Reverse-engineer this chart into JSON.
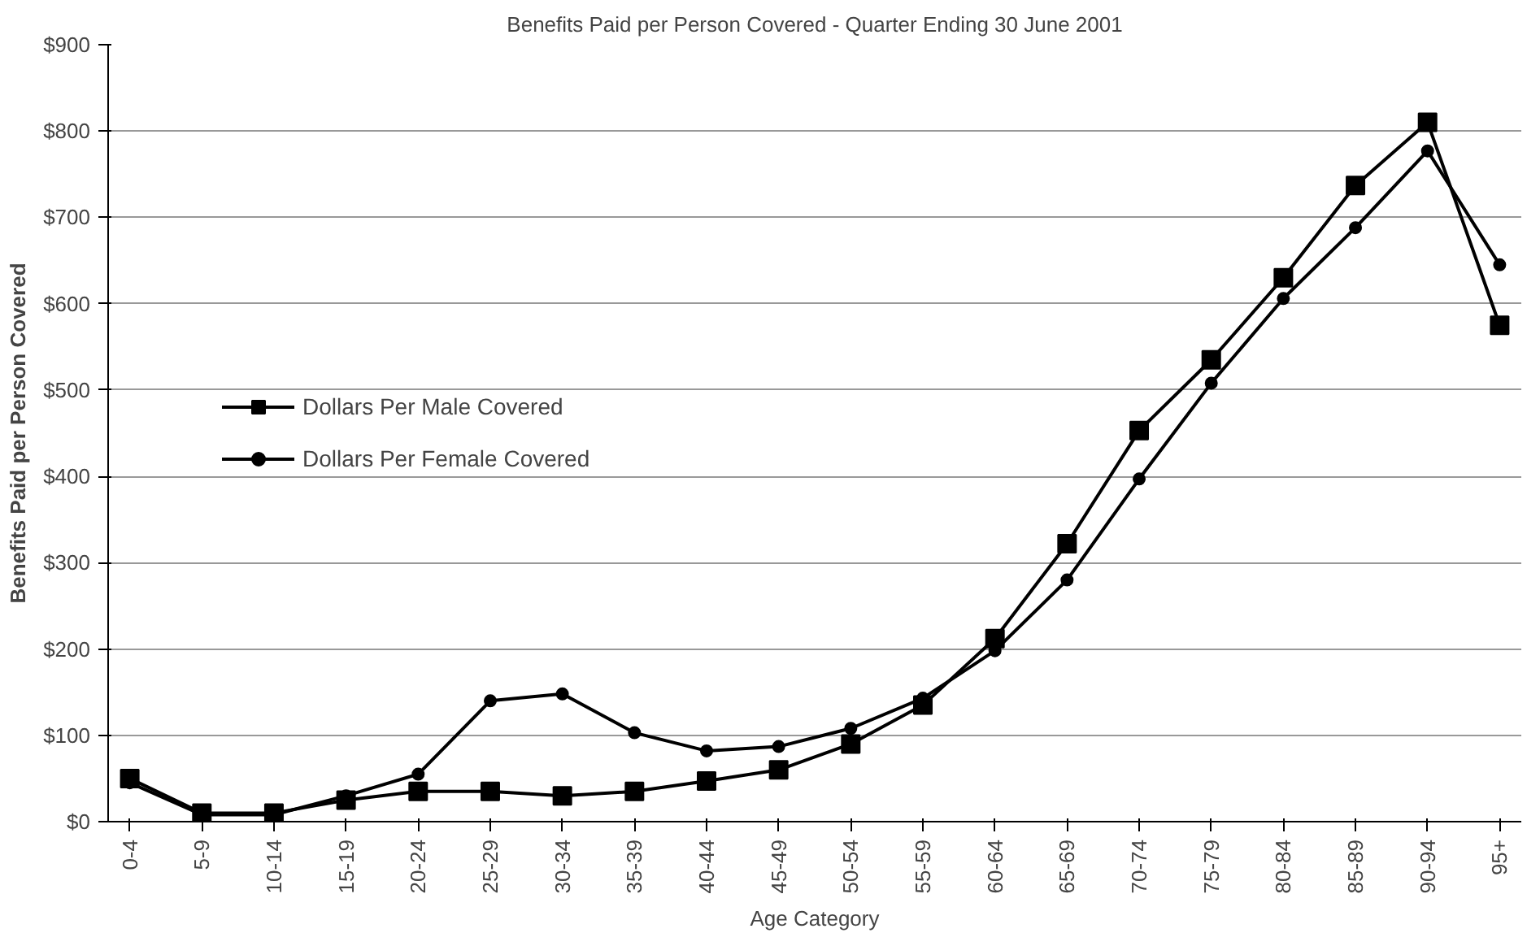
{
  "chart_data": {
    "type": "line",
    "title": "Benefits Paid per Person Covered - Quarter Ending 30 June 2001",
    "xlabel": "Age Category",
    "ylabel": "Benefits Paid per Person Covered",
    "categories": [
      "0-4",
      "5-9",
      "10-14",
      "15-19",
      "20-24",
      "25-29",
      "30-34",
      "35-39",
      "40-44",
      "45-49",
      "50-54",
      "55-59",
      "60-64",
      "65-69",
      "70-74",
      "75-79",
      "80-84",
      "85-89",
      "90-94",
      "95+"
    ],
    "series": [
      {
        "name": "Dollars Per Male Covered",
        "color": "#000000",
        "marker": "square",
        "values": [
          50,
          10,
          10,
          25,
          35,
          35,
          30,
          35,
          47,
          60,
          90,
          135,
          212,
          322,
          453,
          535,
          630,
          737,
          810,
          575
        ]
      },
      {
        "name": "Dollars Per Female Covered",
        "color": "#000000",
        "marker": "circle",
        "values": [
          45,
          8,
          8,
          30,
          55,
          140,
          148,
          103,
          82,
          87,
          108,
          143,
          198,
          280,
          397,
          508,
          606,
          688,
          777,
          645
        ]
      }
    ],
    "ylim": [
      0,
      900
    ],
    "yticks": [
      {
        "value": 0,
        "label": "$0"
      },
      {
        "value": 100,
        "label": "$100"
      },
      {
        "value": 200,
        "label": "$200"
      },
      {
        "value": 300,
        "label": "$300"
      },
      {
        "value": 400,
        "label": "$400"
      },
      {
        "value": 500,
        "label": "$500"
      },
      {
        "value": 600,
        "label": "$600"
      },
      {
        "value": 700,
        "label": "$700"
      },
      {
        "value": 800,
        "label": "$800"
      },
      {
        "value": 900,
        "label": "$900"
      }
    ],
    "grid": "y",
    "legend": "left",
    "line_style": "solid"
  }
}
